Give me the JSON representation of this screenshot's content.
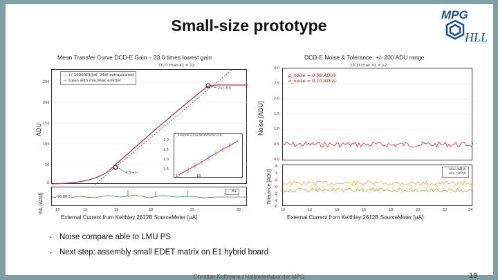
{
  "slide": {
    "title": "Small-size prototype",
    "logo_text_top": "MPG",
    "logo_text_bottom": "HLL",
    "page_number": "19",
    "footer": "Christian Koffmane / Halbleiterlabor der MPG",
    "bullets": [
      "Noise compare able to LMU PS",
      "Next step: assembly small EDET matrix on E1 hybrid board"
    ],
    "colors": {
      "accent": "#7f9ea6",
      "curve": "#c03030",
      "fit": "#0000cc",
      "noise": "#d03030",
      "tol1": "#e0a020",
      "tol2": "#a0a020"
    }
  },
  "left_plot": {
    "title": "Mean Transfer Curve DCD-E Gain – 33.0 times lowest gain",
    "subtitle": "DCD chan 41 = 12",
    "ylabel": "ADU",
    "ylabel_bottom": "INL [ADU]",
    "xlabel": "External Current from Keithley 2612B SourceMeter [µA]",
    "legend": [
      "+/-1000ADU(dC 248) extrapolated",
      "mean with min/max emitter"
    ],
    "yticks": [
      "250",
      "200",
      "150",
      "100",
      "50",
      "0"
    ],
    "xticks": [
      "10",
      "12",
      "15",
      "20",
      "25",
      "30"
    ],
    "marker_labels": [
      "2+/-3.0",
      "4.0/+/-"
    ],
    "inset_title": "transfer curve(zoom factor=10)",
    "inset_yticks": [
      "3.0",
      "2.5",
      "2.0",
      "1.5"
    ],
    "inset_xticks": [
      "17",
      "18"
    ],
    "inl_label": "INL",
    "inl_value": "-98.88:3"
  },
  "right_plot": {
    "title": "DCD-E Noise & Tolerance: +/- 200 ADU range",
    "subtitle": "DCD chan 41 = 12",
    "ylabel": "Noise [ADU]",
    "ylabel_bottom": "Tolerance [ADU]",
    "xlabel": "External Current from Keithley 2612B SourceMeter [µA]",
    "stat1": "μ_noise = 0.08 ADUs",
    "stat2": "σ_noise = 0.10 ADUs",
    "yticks": [
      "3.0",
      "2.5",
      "2.0",
      "1.5",
      "1.0",
      "0.5",
      "0.0"
    ],
    "yticks_bottom": [
      "6",
      "4",
      "2",
      "0",
      "-2",
      "-4",
      "-6"
    ],
    "xticks": [
      "10",
      "12",
      "14",
      "16",
      "18",
      "20",
      "22",
      "24"
    ],
    "legend": [
      "max (ADU)",
      "min (-ADU)"
    ]
  }
}
